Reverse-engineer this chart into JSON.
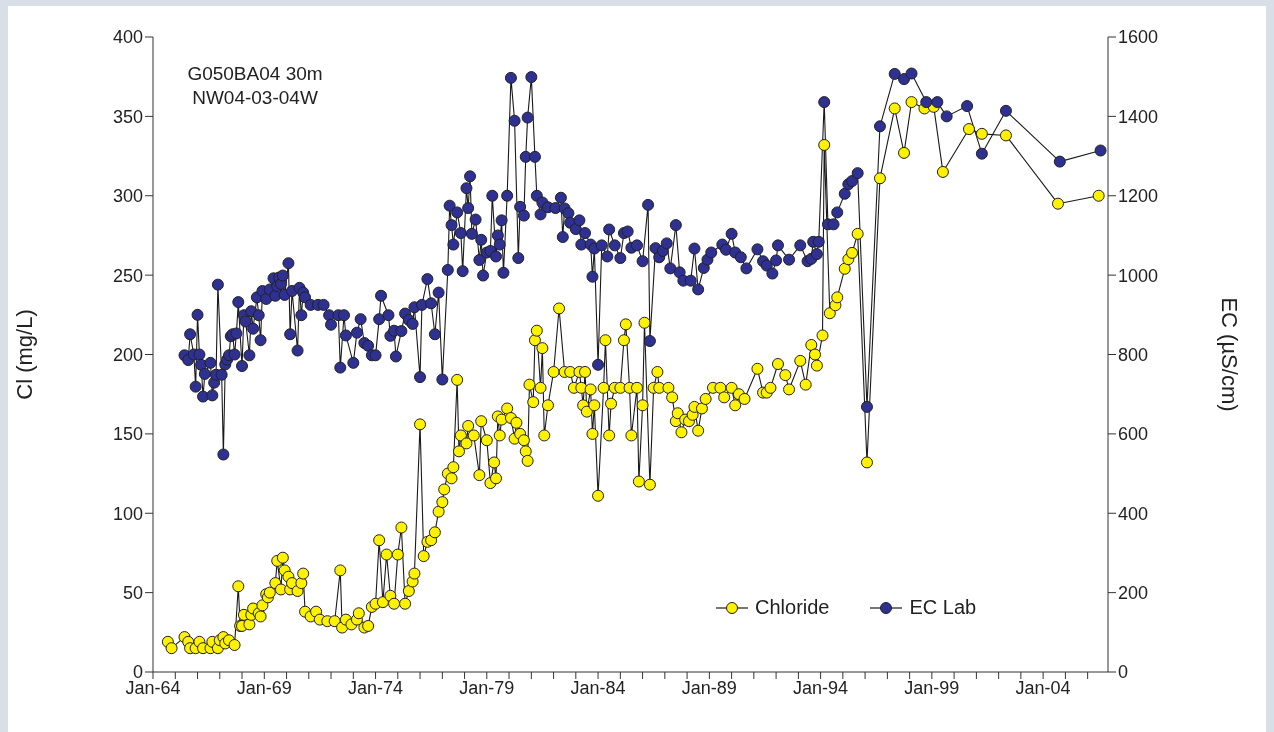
{
  "chart_data": {
    "type": "line",
    "xlabel": null,
    "ylabel": "Cl (mg/L)",
    "y2label": "EC (µS/cm)",
    "annotations": [
      "G050BA04 30m",
      "NW04-03-04W"
    ],
    "xlim": [
      "1964-01",
      "2006-12"
    ],
    "xticks": [
      {
        "value": "1964-01",
        "label": "Jan-64"
      },
      {
        "value": "1965-01",
        "label": null
      },
      {
        "value": "1966-01",
        "label": null
      },
      {
        "value": "1967-01",
        "label": null
      },
      {
        "value": "1968-01",
        "label": null
      },
      {
        "value": "1969-01",
        "label": "Jan-69"
      },
      {
        "value": "1970-01",
        "label": null
      },
      {
        "value": "1971-01",
        "label": null
      },
      {
        "value": "1972-01",
        "label": null
      },
      {
        "value": "1973-01",
        "label": null
      },
      {
        "value": "1974-01",
        "label": "Jan-74"
      },
      {
        "value": "1975-01",
        "label": null
      },
      {
        "value": "1976-01",
        "label": null
      },
      {
        "value": "1977-01",
        "label": null
      },
      {
        "value": "1978-01",
        "label": null
      },
      {
        "value": "1979-01",
        "label": "Jan-79"
      },
      {
        "value": "1980-01",
        "label": null
      },
      {
        "value": "1981-01",
        "label": null
      },
      {
        "value": "1982-01",
        "label": null
      },
      {
        "value": "1983-01",
        "label": null
      },
      {
        "value": "1984-01",
        "label": "Jan-84"
      },
      {
        "value": "1985-01",
        "label": null
      },
      {
        "value": "1986-01",
        "label": null
      },
      {
        "value": "1987-01",
        "label": null
      },
      {
        "value": "1988-01",
        "label": null
      },
      {
        "value": "1989-01",
        "label": "Jan-89"
      },
      {
        "value": "1990-01",
        "label": null
      },
      {
        "value": "1991-01",
        "label": null
      },
      {
        "value": "1992-01",
        "label": null
      },
      {
        "value": "1993-01",
        "label": null
      },
      {
        "value": "1994-01",
        "label": "Jan-94"
      },
      {
        "value": "1995-01",
        "label": null
      },
      {
        "value": "1996-01",
        "label": null
      },
      {
        "value": "1997-01",
        "label": null
      },
      {
        "value": "1998-01",
        "label": null
      },
      {
        "value": "1999-01",
        "label": "Jan-99"
      },
      {
        "value": "2000-01",
        "label": null
      },
      {
        "value": "2001-01",
        "label": null
      },
      {
        "value": "2002-01",
        "label": null
      },
      {
        "value": "2003-01",
        "label": null
      },
      {
        "value": "2004-01",
        "label": "Jan-04"
      },
      {
        "value": "2005-01",
        "label": null
      },
      {
        "value": "2006-01",
        "label": null
      }
    ],
    "ylim": [
      0,
      400
    ],
    "yticks": [
      0,
      50,
      100,
      150,
      200,
      250,
      300,
      350,
      400
    ],
    "y2lim": [
      0,
      1600
    ],
    "y2ticks": [
      0,
      200,
      400,
      600,
      800,
      1000,
      1200,
      1400,
      1600
    ],
    "legend": "bottom right",
    "marker": "circle",
    "line_style": "solid",
    "series": [
      {
        "name": "Chloride",
        "color": "#fff200",
        "axis": "y",
        "x": [
          "1964-09",
          "1964-11",
          "1965-06",
          "1965-08",
          "1965-09",
          "1965-12",
          "1966-02",
          "1966-04",
          "1966-08",
          "1966-09",
          "1966-12",
          "1967-01",
          "1967-03",
          "1967-04",
          "1967-06",
          "1967-09",
          "1967-11",
          "1967-12",
          "1968-01",
          "1968-02",
          "1968-05",
          "1968-06",
          "1968-07",
          "1968-10",
          "1968-11",
          "1968-12",
          "1969-02",
          "1969-03",
          "1969-04",
          "1969-07",
          "1969-08",
          "1969-10",
          "1969-11",
          "1969-12",
          "1970-02",
          "1970-03",
          "1970-04",
          "1970-07",
          "1970-09",
          "1970-10",
          "1970-11",
          "1971-02",
          "1971-05",
          "1971-07",
          "1971-11",
          "1972-03",
          "1972-06",
          "1972-07",
          "1972-09",
          "1972-12",
          "1973-03",
          "1973-04",
          "1973-07",
          "1973-09",
          "1973-11",
          "1974-01",
          "1974-03",
          "1974-05",
          "1974-07",
          "1974-09",
          "1974-11",
          "1975-01",
          "1975-03",
          "1975-05",
          "1975-07",
          "1975-09",
          "1975-10",
          "1976-01",
          "1976-03",
          "1976-05",
          "1976-07",
          "1976-09",
          "1976-11",
          "1977-01",
          "1977-02",
          "1977-04",
          "1977-06",
          "1977-07",
          "1977-09",
          "1977-10",
          "1977-11",
          "1978-02",
          "1978-03",
          "1978-06",
          "1978-09",
          "1978-10",
          "1979-01",
          "1979-03",
          "1979-05",
          "1979-06",
          "1979-07",
          "1979-08",
          "1979-09",
          "1979-12",
          "1980-02",
          "1980-04",
          "1980-05",
          "1980-07",
          "1980-09",
          "1980-10",
          "1980-11",
          "1980-12",
          "1981-02",
          "1981-03",
          "1981-04",
          "1981-06",
          "1981-07",
          "1981-08",
          "1981-10",
          "1982-01",
          "1982-04",
          "1982-07",
          "1982-10",
          "1982-12",
          "1983-03",
          "1983-04",
          "1983-05",
          "1983-06",
          "1983-07",
          "1983-09",
          "1983-10",
          "1983-11",
          "1984-01",
          "1984-04",
          "1984-05",
          "1984-07",
          "1984-08",
          "1984-10",
          "1985-01",
          "1985-03",
          "1985-04",
          "1985-06",
          "1985-07",
          "1985-10",
          "1985-11",
          "1986-01",
          "1986-02",
          "1986-05",
          "1986-07",
          "1986-09",
          "1986-10",
          "1987-03",
          "1987-05",
          "1987-07",
          "1987-08",
          "1987-10",
          "1987-12",
          "1988-02",
          "1988-04",
          "1988-05",
          "1988-07",
          "1988-09",
          "1988-11",
          "1989-03",
          "1989-07",
          "1989-09",
          "1990-01",
          "1990-03",
          "1990-05",
          "1990-08",
          "1991-03",
          "1991-06",
          "1991-08",
          "1991-10",
          "1992-02",
          "1992-06",
          "1992-08",
          "1993-02",
          "1993-05",
          "1993-08",
          "1993-10",
          "1993-11",
          "1994-02",
          "1994-03",
          "1994-06",
          "1994-09",
          "1994-10",
          "1995-02",
          "1995-04",
          "1995-06",
          "1995-09",
          "1996-02",
          "1996-09",
          "1997-05",
          "1997-10",
          "1998-02",
          "1998-09",
          "1999-02",
          "1999-07",
          "2000-09",
          "2001-04",
          "2002-05",
          "2004-09",
          "2006-07"
        ],
        "values": [
          19,
          15,
          22,
          19,
          15,
          15,
          19,
          15,
          15,
          19,
          15,
          20,
          22,
          18,
          20,
          17,
          54,
          29,
          29,
          36,
          30,
          36,
          40,
          37,
          35,
          42,
          49,
          47,
          50,
          56,
          70,
          52,
          72,
          64,
          60,
          52,
          56,
          51,
          56,
          62,
          38,
          35,
          38,
          33,
          32,
          32,
          64,
          28,
          33,
          30,
          33,
          37,
          28,
          29,
          41,
          43,
          83,
          44,
          74,
          48,
          43,
          74,
          91,
          43,
          51,
          57,
          62,
          156,
          73,
          82,
          83,
          88,
          101,
          107,
          115,
          125,
          122,
          129,
          184,
          139,
          149,
          144,
          155,
          149,
          124,
          158,
          146,
          119,
          132,
          122,
          161,
          149,
          159,
          166,
          160,
          147,
          157,
          150,
          146,
          139,
          133,
          181,
          170,
          209,
          215,
          179,
          204,
          149,
          168,
          189,
          229,
          189,
          189,
          179,
          189,
          179,
          168,
          189,
          164,
          178,
          150,
          168,
          111,
          179,
          209,
          149,
          169,
          179,
          179,
          209,
          219,
          179,
          149,
          179,
          120,
          168,
          220,
          118,
          179,
          189,
          179,
          179,
          173,
          158,
          163,
          151,
          159,
          158,
          162,
          167,
          152,
          166,
          172,
          179,
          179,
          173,
          179,
          168,
          175,
          172,
          191,
          176,
          176,
          179,
          194,
          187,
          178,
          196,
          181,
          206,
          200,
          193,
          212,
          332,
          226,
          231,
          236,
          254,
          260,
          264,
          276,
          132,
          311,
          355,
          327,
          359,
          355,
          356,
          315,
          342,
          339,
          338,
          295,
          300
        ]
      },
      {
        "name": "EC Lab",
        "color": "#2e3192",
        "axis": "y2",
        "x": [
          "1965-06",
          "1965-08",
          "1965-09",
          "1965-11",
          "1965-12",
          "1966-01",
          "1966-02",
          "1966-03",
          "1966-04",
          "1966-05",
          "1966-08",
          "1966-09",
          "1966-10",
          "1966-11",
          "1966-12",
          "1967-02",
          "1967-03",
          "1967-04",
          "1967-05",
          "1967-06",
          "1967-07",
          "1967-08",
          "1967-09",
          "1967-10",
          "1967-11",
          "1968-01",
          "1968-02",
          "1968-03",
          "1968-05",
          "1968-06",
          "1968-07",
          "1968-09",
          "1968-10",
          "1968-11",
          "1968-12",
          "1969-02",
          "1969-04",
          "1969-06",
          "1969-07",
          "1969-08",
          "1969-09",
          "1969-10",
          "1969-11",
          "1969-12",
          "1970-02",
          "1970-03",
          "1970-04",
          "1970-07",
          "1970-08",
          "1970-09",
          "1970-10",
          "1970-11",
          "1971-02",
          "1971-06",
          "1971-09",
          "1971-12",
          "1972-01",
          "1972-05",
          "1972-06",
          "1972-08",
          "1972-09",
          "1973-01",
          "1973-03",
          "1973-05",
          "1973-07",
          "1973-09",
          "1973-11",
          "1974-01",
          "1974-03",
          "1974-04",
          "1974-08",
          "1974-09",
          "1974-11",
          "1974-12",
          "1975-03",
          "1975-05",
          "1975-07",
          "1975-09",
          "1975-10",
          "1976-01",
          "1976-02",
          "1976-05",
          "1976-07",
          "1976-09",
          "1976-11",
          "1977-01",
          "1977-04",
          "1977-05",
          "1977-06",
          "1977-07",
          "1977-09",
          "1977-11",
          "1977-12",
          "1978-02",
          "1978-03",
          "1978-04",
          "1978-05",
          "1978-07",
          "1978-09",
          "1978-10",
          "1978-11",
          "1979-01",
          "1979-03",
          "1979-04",
          "1979-06",
          "1979-07",
          "1979-08",
          "1979-09",
          "1979-10",
          "1979-12",
          "1980-02",
          "1980-04",
          "1980-06",
          "1980-07",
          "1980-09",
          "1980-10",
          "1980-11",
          "1981-01",
          "1981-03",
          "1981-04",
          "1981-06",
          "1981-07",
          "1981-10",
          "1982-02",
          "1982-05",
          "1982-06",
          "1982-07",
          "1982-09",
          "1982-10",
          "1983-01",
          "1983-03",
          "1983-04",
          "1983-06",
          "1983-09",
          "1983-10",
          "1983-11",
          "1984-01",
          "1984-03",
          "1984-06",
          "1984-07",
          "1984-10",
          "1985-01",
          "1985-03",
          "1985-05",
          "1985-07",
          "1985-10",
          "1986-01",
          "1986-04",
          "1986-05",
          "1986-08",
          "1986-10",
          "1986-12",
          "1987-02",
          "1987-04",
          "1987-07",
          "1987-09",
          "1987-11",
          "1988-03",
          "1988-05",
          "1988-07",
          "1988-10",
          "1988-12",
          "1989-02",
          "1989-08",
          "1989-10",
          "1990-01",
          "1990-03",
          "1990-06",
          "1990-09",
          "1991-03",
          "1991-06",
          "1991-08",
          "1991-11",
          "1992-01",
          "1992-02",
          "1992-08",
          "1993-02",
          "1993-06",
          "1993-08",
          "1993-09",
          "1993-11",
          "1993-12",
          "1994-03",
          "1994-05",
          "1994-08",
          "1994-10",
          "1995-02",
          "1995-04",
          "1995-06",
          "1995-09",
          "1996-02",
          "1996-09",
          "1997-05",
          "1997-10",
          "1998-02",
          "1998-10",
          "1999-04",
          "1999-09",
          "2000-08",
          "2001-04",
          "2002-05",
          "2004-10",
          "2006-08"
        ],
        "values": [
          798,
          786,
          851,
          800,
          719,
          900,
          800,
          774,
          694,
          751,
          779,
          697,
          729,
          749,
          976,
          749,
          548,
          775,
          787,
          798,
          846,
          851,
          800,
          853,
          932,
          771,
          899,
          883,
          798,
          909,
          865,
          944,
          899,
          836,
          960,
          940,
          964,
          992,
          948,
          972,
          994,
          978,
          999,
          950,
          1030,
          851,
          960,
          810,
          968,
          899,
          956,
          944,
          925,
          925,
          925,
          899,
          875,
          899,
          767,
          899,
          848,
          779,
          855,
          889,
          829,
          822,
          798,
          798,
          889,
          948,
          899,
          847,
          860,
          795,
          859,
          903,
          887,
          877,
          919,
          743,
          925,
          990,
          929,
          851,
          956,
          737,
          1013,
          1175,
          1126,
          1077,
          1158,
          1106,
          1010,
          1219,
          1169,
          1249,
          1104,
          1140,
          1038,
          1089,
          999,
          1057,
          1061,
          1200,
          1047,
          1100,
          1077,
          1138,
          1006,
          1200,
          1497,
          1389,
          1043,
          1172,
          1150,
          1298,
          1397,
          1499,
          1298,
          1200,
          1153,
          1183,
          1171,
          1169,
          1195,
          1096,
          1168,
          1156,
          1132,
          1116,
          1138,
          1077,
          1106,
          1077,
          996,
          1067,
          774,
          1075,
          1047,
          1115,
          1075,
          1043,
          1106,
          1110,
          1069,
          1075,
          1035,
          1177,
          834,
          1068,
          1045,
          1061,
          1080,
          1017,
          1126,
          1007,
          986,
          986,
          1067,
          964,
          1018,
          1039,
          1057,
          1077,
          1064,
          1104,
          1057,
          1045,
          1017,
          1065,
          1035,
          1024,
          1004,
          1037,
          1075,
          1039,
          1075,
          1035,
          1041,
          1084,
          1053,
          1084,
          1436,
          1128,
          1128,
          1158,
          1205,
          1229,
          1237,
          1257,
          668,
          1375,
          1507,
          1494,
          1508,
          1436,
          1436,
          1400,
          1426,
          1306,
          1414,
          1286,
          1314
        ]
      }
    ]
  }
}
